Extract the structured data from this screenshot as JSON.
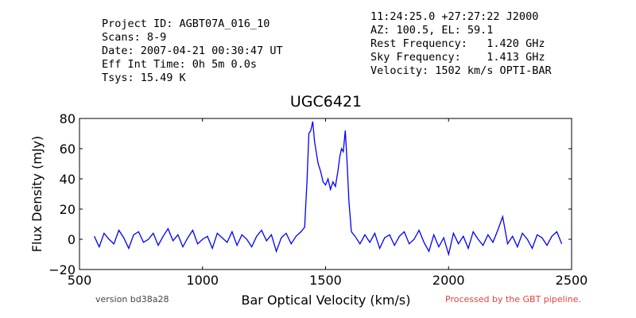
{
  "header": {
    "left": [
      "Project ID: AGBT07A_016_10",
      "Scans: 8-9",
      "Date: 2007-04-21 00:30:47 UT",
      "Eff Int Time: 0h 5m 0.0s",
      "Tsys: 15.49 K"
    ],
    "right": [
      "11:24:25.0 +27:27:22 J2000",
      "AZ: 100.5, EL: 59.1",
      "Rest Frequency:   1.420 GHz",
      "Sky Frequency:    1.413 GHz",
      "Velocity: 1502 km/s OPTI-BAR"
    ]
  },
  "footer": {
    "version": "version bd38a28",
    "processed": "Processed by the GBT pipeline."
  },
  "chart_data": {
    "type": "line",
    "title": "UGC6421",
    "xlabel": "Bar Optical Velocity (km/s)",
    "ylabel": "Flux Density (mJy)",
    "xlim": [
      500,
      2500
    ],
    "ylim": [
      -20,
      80
    ],
    "xticks": [
      500,
      1000,
      1500,
      2000,
      2500
    ],
    "yticks": [
      -20,
      0,
      20,
      40,
      60,
      80
    ],
    "grid": false,
    "line_color": "#0000ff",
    "series": [
      {
        "x": [
          560,
          580,
          600,
          620,
          640,
          660,
          680,
          700,
          720,
          740,
          760,
          780,
          800,
          820,
          840,
          860,
          880,
          900,
          920,
          940,
          960,
          980,
          1000,
          1020,
          1040,
          1060,
          1080,
          1100,
          1120,
          1140,
          1160,
          1180,
          1200,
          1220,
          1240,
          1260,
          1280,
          1300,
          1320,
          1340,
          1360,
          1380,
          1400,
          1415,
          1425,
          1432,
          1440,
          1448,
          1455,
          1462,
          1470,
          1480,
          1490,
          1500,
          1510,
          1520,
          1530,
          1540,
          1550,
          1558,
          1565,
          1572,
          1580,
          1588,
          1595,
          1605,
          1620,
          1640,
          1660,
          1680,
          1700,
          1720,
          1740,
          1760,
          1780,
          1800,
          1820,
          1840,
          1860,
          1880,
          1900,
          1920,
          1940,
          1960,
          1980,
          2000,
          2020,
          2040,
          2060,
          2080,
          2100,
          2120,
          2140,
          2160,
          2180,
          2200,
          2220,
          2240,
          2260,
          2280,
          2300,
          2320,
          2340,
          2360,
          2380,
          2400,
          2420,
          2440,
          2460
        ],
        "y": [
          2,
          -5,
          4,
          0,
          -3,
          6,
          1,
          -6,
          3,
          5,
          -2,
          0,
          4,
          -4,
          2,
          7,
          -1,
          3,
          -5,
          1,
          6,
          -3,
          0,
          2,
          -6,
          4,
          1,
          -2,
          5,
          -4,
          3,
          0,
          -5,
          2,
          6,
          -1,
          3,
          -8,
          1,
          4,
          -3,
          2,
          5,
          8,
          40,
          70,
          72,
          78,
          65,
          58,
          50,
          45,
          38,
          36,
          40,
          33,
          38,
          35,
          45,
          55,
          60,
          58,
          72,
          50,
          25,
          5,
          2,
          -3,
          3,
          -2,
          4,
          -6,
          1,
          3,
          -4,
          2,
          5,
          -3,
          0,
          6,
          -2,
          -8,
          3,
          -5,
          1,
          -10,
          4,
          -3,
          2,
          -6,
          5,
          0,
          -4,
          3,
          -2,
          6,
          15,
          -3,
          2,
          -5,
          4,
          0,
          -6,
          3,
          1,
          -4,
          2,
          5,
          -3
        ]
      }
    ]
  }
}
